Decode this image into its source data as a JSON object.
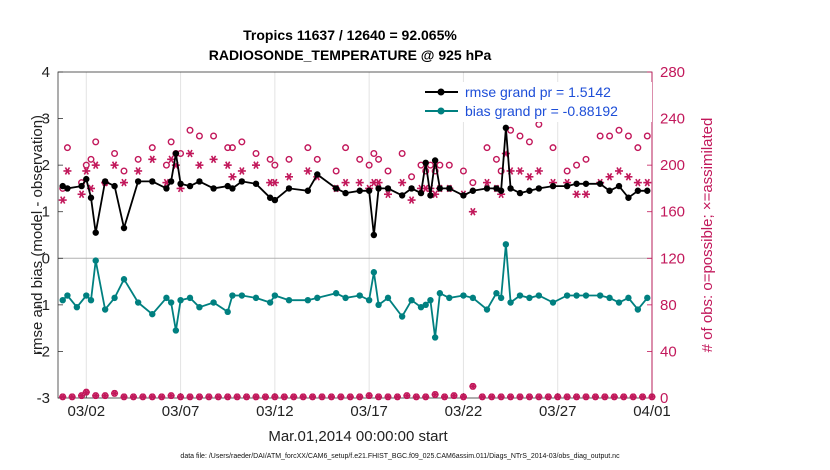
{
  "chart_data": {
    "type": "line",
    "title_line1": "Tropics 11637 / 12640 = 92.065%",
    "title_line2": "RADIOSONDE_TEMPERATURE @ 925 hPa",
    "ylabel_left": "rmse and bias (model - observation)",
    "ylabel_right": "# of obs: o=possible; ×=assimilated",
    "xlabel": "Mar.01,2014 00:00:00 start",
    "footnote": "data file: /Users/raeder/DAI/ATM_forcXX/CAM6_setup/f.e21.FHIST_BGC.f09_025.CAM6assim.011/Diags_NTrS_2014-03/obs_diag_output.nc",
    "ylim_left": [
      -3,
      4
    ],
    "yticks_left": [
      "-3",
      "-2",
      "-1",
      "0",
      "1",
      "2",
      "3",
      "4"
    ],
    "ylim_right": [
      0,
      280
    ],
    "yticks_right": [
      "0",
      "40",
      "80",
      "120",
      "160",
      "200",
      "240",
      "280"
    ],
    "xlim": [
      0.5,
      32.0
    ],
    "x_ticks": [
      {
        "x": 2,
        "label": "03/02"
      },
      {
        "x": 7,
        "label": "03/07"
      },
      {
        "x": 12,
        "label": "03/12"
      },
      {
        "x": 17,
        "label": "03/17"
      },
      {
        "x": 22,
        "label": "03/22"
      },
      {
        "x": 27,
        "label": "03/27"
      },
      {
        "x": 32,
        "label": "04/01"
      }
    ],
    "series": [
      {
        "name": "rmse",
        "legend": "rmse grand pr = 1.5142",
        "color": "#000000",
        "x": [
          0.75,
          1.0,
          1.75,
          2.0,
          2.25,
          2.5,
          3.0,
          3.5,
          4.0,
          4.75,
          5.5,
          6.25,
          6.5,
          6.75,
          7.0,
          7.5,
          8.0,
          8.75,
          9.5,
          9.75,
          10.25,
          11.0,
          11.75,
          12.0,
          12.75,
          13.75,
          14.25,
          15.25,
          15.75,
          16.5,
          17.0,
          17.25,
          17.5,
          18.0,
          18.75,
          19.25,
          19.75,
          20.0,
          20.25,
          20.5,
          20.75,
          21.25,
          22.0,
          22.5,
          23.25,
          23.75,
          24.0,
          24.25,
          24.5,
          25.0,
          25.5,
          26.0,
          26.75,
          27.5,
          28.0,
          28.5,
          29.25,
          29.75,
          30.25,
          30.75,
          31.25,
          31.75
        ],
        "values": [
          1.55,
          1.5,
          1.55,
          1.7,
          1.3,
          0.55,
          1.65,
          1.55,
          0.65,
          1.65,
          1.65,
          1.5,
          1.65,
          2.25,
          1.6,
          1.55,
          1.65,
          1.5,
          1.55,
          1.5,
          1.65,
          1.6,
          1.3,
          1.25,
          1.5,
          1.45,
          1.8,
          1.5,
          1.4,
          1.45,
          1.45,
          0.5,
          1.5,
          1.5,
          1.35,
          1.5,
          1.4,
          2.05,
          1.35,
          2.1,
          1.5,
          1.5,
          1.35,
          1.45,
          1.5,
          1.5,
          1.45,
          2.8,
          1.5,
          1.4,
          1.45,
          1.5,
          1.55,
          1.55,
          1.6,
          1.6,
          1.6,
          1.45,
          1.55,
          1.3,
          1.45,
          1.45
        ]
      },
      {
        "name": "bias",
        "legend": "bias grand pr = -0.88192",
        "color": "#008080",
        "x": [
          0.75,
          1.0,
          1.5,
          2.0,
          2.25,
          2.5,
          3.0,
          3.5,
          4.0,
          4.75,
          5.5,
          6.25,
          6.5,
          6.75,
          7.0,
          7.5,
          8.0,
          8.75,
          9.5,
          9.75,
          10.25,
          11.0,
          11.75,
          12.0,
          12.75,
          13.75,
          14.25,
          15.25,
          15.75,
          16.5,
          17.0,
          17.25,
          17.5,
          18.0,
          18.75,
          19.25,
          19.75,
          20.0,
          20.25,
          20.5,
          20.75,
          21.25,
          22.0,
          22.5,
          23.25,
          23.75,
          24.0,
          24.25,
          24.5,
          25.0,
          25.5,
          26.0,
          26.75,
          27.5,
          28.0,
          28.5,
          29.25,
          29.75,
          30.25,
          30.75,
          31.25,
          31.75
        ],
        "values": [
          -0.9,
          -0.8,
          -1.05,
          -0.8,
          -0.9,
          -0.05,
          -1.1,
          -0.85,
          -0.45,
          -0.95,
          -1.2,
          -0.85,
          -0.95,
          -1.55,
          -0.9,
          -0.85,
          -1.05,
          -0.95,
          -1.15,
          -0.8,
          -0.8,
          -0.85,
          -0.95,
          -0.8,
          -0.9,
          -0.9,
          -0.85,
          -0.75,
          -0.85,
          -0.8,
          -0.9,
          -0.3,
          -1.0,
          -0.85,
          -1.25,
          -0.9,
          -1.05,
          -1.0,
          -0.9,
          -1.7,
          -0.75,
          -0.85,
          -0.8,
          -0.85,
          -1.1,
          -0.75,
          -0.85,
          0.3,
          -0.95,
          -0.8,
          -0.85,
          -0.8,
          -0.95,
          -0.8,
          -0.8,
          -0.8,
          -0.8,
          -0.85,
          -0.95,
          -0.85,
          -1.1,
          -0.85
        ]
      },
      {
        "name": "obs possible",
        "color": "#c2185b",
        "axis": "right",
        "marker": "circle",
        "x": [
          0.75,
          1.0,
          1.75,
          2.0,
          2.25,
          2.5,
          3.0,
          3.5,
          4.0,
          4.75,
          5.5,
          6.25,
          6.5,
          6.75,
          7.0,
          7.5,
          8.0,
          8.75,
          9.5,
          9.75,
          10.25,
          11.0,
          11.75,
          12.0,
          12.75,
          13.75,
          14.25,
          15.25,
          15.75,
          16.5,
          17.0,
          17.25,
          17.5,
          18.0,
          18.75,
          19.25,
          19.75,
          20.0,
          20.25,
          20.5,
          20.75,
          21.25,
          22.0,
          22.5,
          23.25,
          23.75,
          24.0,
          24.25,
          24.5,
          25.0,
          25.5,
          26.0,
          26.75,
          27.5,
          28.0,
          28.5,
          29.25,
          29.75,
          30.25,
          30.75,
          31.25,
          31.75
        ],
        "values": [
          180,
          215,
          185,
          200,
          205,
          220,
          185,
          210,
          195,
          205,
          215,
          200,
          220,
          210,
          210,
          230,
          225,
          225,
          215,
          215,
          220,
          210,
          205,
          200,
          205,
          215,
          205,
          195,
          215,
          205,
          200,
          210,
          205,
          195,
          210,
          190,
          200,
          195,
          200,
          195,
          200,
          200,
          195,
          185,
          215,
          205,
          195,
          240,
          230,
          225,
          220,
          235,
          215,
          195,
          200,
          205,
          225,
          225,
          230,
          225,
          215,
          225
        ]
      },
      {
        "name": "obs assimilated",
        "color": "#c2185b",
        "axis": "right",
        "marker": "star",
        "x": [
          0.75,
          1.0,
          1.75,
          2.0,
          2.25,
          2.5,
          3.0,
          3.5,
          4.0,
          4.75,
          5.5,
          6.25,
          6.5,
          6.75,
          7.0,
          7.5,
          8.0,
          8.75,
          9.5,
          9.75,
          10.25,
          11.0,
          11.75,
          12.0,
          12.75,
          13.75,
          14.25,
          15.25,
          15.75,
          16.5,
          17.0,
          17.25,
          17.5,
          18.0,
          18.75,
          19.25,
          19.75,
          20.0,
          20.25,
          20.5,
          20.75,
          21.25,
          22.0,
          22.5,
          23.25,
          23.75,
          24.0,
          24.25,
          24.5,
          25.0,
          25.5,
          26.0,
          26.75,
          27.5,
          28.0,
          28.5,
          29.25,
          29.75,
          30.25,
          30.75,
          31.25,
          31.75
        ],
        "values": [
          170,
          195,
          175,
          195,
          180,
          200,
          185,
          200,
          185,
          195,
          205,
          185,
          205,
          200,
          180,
          210,
          200,
          205,
          200,
          190,
          195,
          200,
          185,
          185,
          190,
          195,
          190,
          180,
          185,
          185,
          180,
          185,
          185,
          175,
          185,
          170,
          180,
          180,
          180,
          175,
          180,
          180,
          175,
          160,
          185,
          180,
          175,
          210,
          195,
          195,
          190,
          195,
          185,
          185,
          175,
          175,
          185,
          190,
          195,
          190,
          185,
          185
        ]
      },
      {
        "name": "obs possible near zero",
        "color": "#c2185b",
        "axis": "right",
        "marker": "circle",
        "x": [
          0.75,
          1.25,
          1.75,
          2.0,
          2.5,
          3.0,
          3.5,
          4.0,
          4.5,
          5.0,
          5.5,
          6.0,
          6.5,
          7.0,
          7.5,
          8.0,
          8.5,
          9.0,
          9.5,
          10.0,
          10.5,
          11.0,
          11.5,
          12.0,
          12.5,
          13.0,
          13.5,
          14.0,
          14.5,
          15.0,
          15.5,
          16.0,
          16.5,
          17.0,
          17.5,
          18.0,
          18.5,
          19.0,
          19.5,
          20.0,
          20.5,
          21.0,
          21.5,
          22.0,
          22.5,
          23.0,
          23.5,
          24.0,
          24.5,
          25.0,
          25.5,
          26.0,
          26.5,
          27.0,
          27.5,
          28.0,
          28.5,
          29.0,
          29.5,
          30.0,
          30.5,
          31.0,
          31.5,
          32.0
        ],
        "values": [
          1,
          1,
          2,
          5,
          2,
          2,
          4,
          1,
          1,
          1,
          1,
          1,
          2,
          1,
          1,
          1,
          1,
          1,
          1,
          1,
          1,
          1,
          1,
          1,
          1,
          1,
          1,
          1,
          1,
          1,
          1,
          1,
          1,
          2,
          1,
          1,
          1,
          2,
          1,
          1,
          3,
          1,
          2,
          1,
          10,
          1,
          1,
          1,
          1,
          1,
          1,
          1,
          1,
          1,
          1,
          1,
          1,
          1,
          1,
          1,
          1,
          1,
          1,
          1
        ]
      }
    ]
  }
}
